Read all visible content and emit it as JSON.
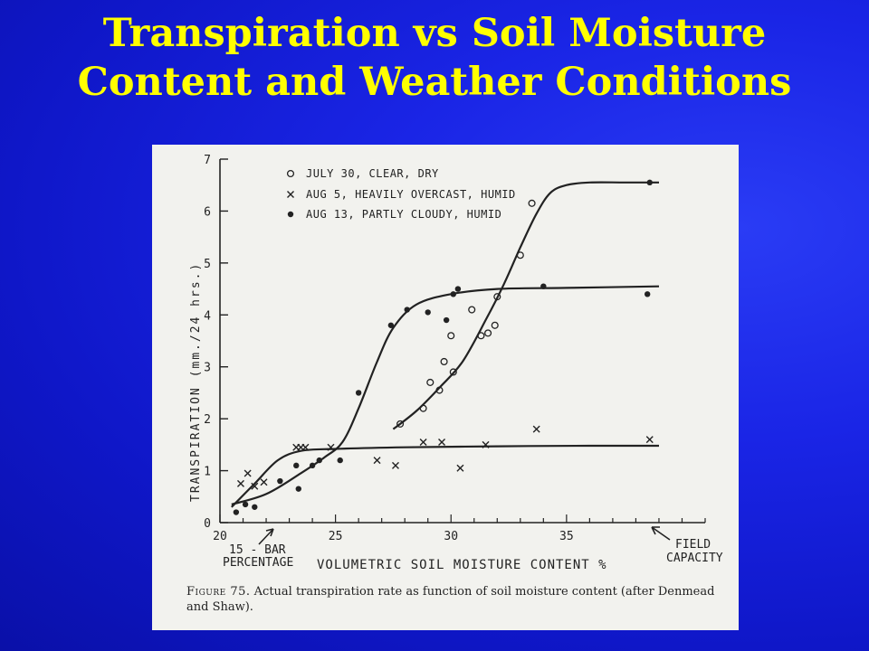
{
  "slide": {
    "title_line1": "Transpiration vs Soil Moisture",
    "title_line2": "Content and Weather Conditions"
  },
  "figure": {
    "caption_lead": "Figure 75.",
    "caption_rest": " Actual transpiration rate as function of soil moisture content (after Denmead and Shaw).",
    "annotations": {
      "bar15_line1": "15 - BAR",
      "bar15_line2": "PERCENTAGE",
      "field_line1": "FIELD",
      "field_line2": "CAPACITY"
    }
  },
  "colors": {
    "background": "#1a25e6",
    "title": "#ffff00",
    "figure_bg": "#f2f2ee",
    "ink": "#222222"
  },
  "chart_data": {
    "type": "scatter",
    "title": "",
    "xlabel": "VOLUMETRIC  SOIL  MOISTURE  CONTENT %",
    "ylabel": "TRANSPIRATION  (mm./24 hrs.)",
    "xlim": [
      20,
      41
    ],
    "ylim": [
      0,
      7
    ],
    "x_ticks": [
      20,
      25,
      30,
      35
    ],
    "y_ticks": [
      0,
      1,
      2,
      3,
      4,
      5,
      6,
      7
    ],
    "legend_position": "top",
    "series": [
      {
        "name": "JULY 30, CLEAR, DRY",
        "marker": "o",
        "points": [
          [
            27.8,
            1.9
          ],
          [
            28.8,
            2.2
          ],
          [
            29.1,
            2.7
          ],
          [
            29.5,
            2.55
          ],
          [
            29.7,
            3.1
          ],
          [
            30.0,
            3.6
          ],
          [
            30.1,
            2.9
          ],
          [
            30.9,
            4.1
          ],
          [
            31.3,
            3.6
          ],
          [
            31.6,
            3.65
          ],
          [
            31.9,
            3.8
          ],
          [
            32.0,
            4.35
          ],
          [
            33.0,
            5.15
          ],
          [
            33.5,
            6.15
          ]
        ],
        "curve": [
          [
            27.5,
            1.8
          ],
          [
            28.5,
            2.15
          ],
          [
            29.5,
            2.6
          ],
          [
            30.5,
            3.1
          ],
          [
            31.5,
            3.9
          ],
          [
            32.3,
            4.6
          ],
          [
            33.0,
            5.3
          ],
          [
            33.7,
            5.95
          ],
          [
            34.3,
            6.35
          ],
          [
            35.0,
            6.5
          ],
          [
            36.0,
            6.55
          ],
          [
            37.5,
            6.55
          ],
          [
            39.0,
            6.55
          ]
        ],
        "end_point": [
          38.6,
          6.55
        ]
      },
      {
        "name": "AUG 5, HEAVILY OVERCAST, HUMID",
        "marker": "x",
        "points": [
          [
            20.9,
            0.75
          ],
          [
            21.2,
            0.95
          ],
          [
            21.5,
            0.7
          ],
          [
            21.9,
            0.78
          ],
          [
            23.3,
            1.45
          ],
          [
            23.5,
            1.45
          ],
          [
            23.7,
            1.45
          ],
          [
            24.8,
            1.45
          ],
          [
            26.8,
            1.2
          ],
          [
            27.6,
            1.1
          ],
          [
            28.8,
            1.55
          ],
          [
            29.6,
            1.55
          ],
          [
            30.4,
            1.05
          ],
          [
            31.5,
            1.5
          ],
          [
            33.7,
            1.8
          ],
          [
            38.6,
            1.6
          ]
        ],
        "curve": [
          [
            20.5,
            0.3
          ],
          [
            21.5,
            0.75
          ],
          [
            22.5,
            1.2
          ],
          [
            23.5,
            1.38
          ],
          [
            25.0,
            1.42
          ],
          [
            28.0,
            1.45
          ],
          [
            32.0,
            1.47
          ],
          [
            36.0,
            1.48
          ],
          [
            39.0,
            1.48
          ]
        ]
      },
      {
        "name": "AUG 13, PARTLY CLOUDY, HUMID",
        "marker": "dot",
        "points": [
          [
            20.7,
            0.2
          ],
          [
            21.1,
            0.35
          ],
          [
            21.5,
            0.3
          ],
          [
            22.6,
            0.8
          ],
          [
            23.3,
            1.1
          ],
          [
            23.4,
            0.65
          ],
          [
            24.0,
            1.1
          ],
          [
            24.3,
            1.2
          ],
          [
            25.2,
            1.2
          ],
          [
            26.0,
            2.5
          ],
          [
            27.4,
            3.8
          ],
          [
            28.1,
            4.1
          ],
          [
            29.0,
            4.05
          ],
          [
            29.8,
            3.9
          ],
          [
            30.1,
            4.4
          ],
          [
            30.3,
            4.5
          ],
          [
            34.0,
            4.55
          ],
          [
            38.5,
            4.4
          ]
        ],
        "curve": [
          [
            20.5,
            0.35
          ],
          [
            22.0,
            0.55
          ],
          [
            23.5,
            0.95
          ],
          [
            24.5,
            1.25
          ],
          [
            25.3,
            1.55
          ],
          [
            26.0,
            2.2
          ],
          [
            26.8,
            3.1
          ],
          [
            27.5,
            3.75
          ],
          [
            28.5,
            4.2
          ],
          [
            30.0,
            4.4
          ],
          [
            32.0,
            4.5
          ],
          [
            35.0,
            4.52
          ],
          [
            39.0,
            4.55
          ]
        ]
      }
    ]
  }
}
